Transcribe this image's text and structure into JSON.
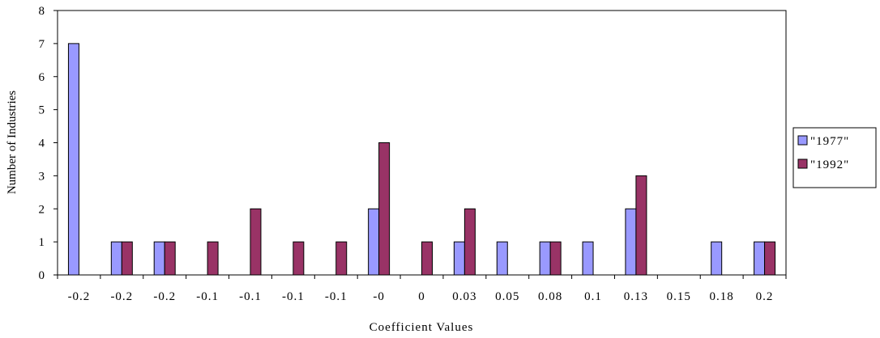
{
  "chart_data": {
    "type": "bar",
    "title": "",
    "xlabel": "Coefficient Values",
    "ylabel": "Number of Industries",
    "ylim": [
      0,
      8
    ],
    "yticks": [
      0,
      1,
      2,
      3,
      4,
      5,
      6,
      7,
      8
    ],
    "categories": [
      "-0.2",
      "-0.2",
      "-0.2",
      "-0.1",
      "-0.1",
      "-0.1",
      "-0.1",
      "-0",
      "0",
      "0.03",
      "0.05",
      "0.08",
      "0.1",
      "0.13",
      "0.15",
      "0.18",
      "0.2"
    ],
    "series": [
      {
        "name": "\"1977\"",
        "color": "#9999ff",
        "values": [
          7,
          1,
          1,
          0,
          0,
          0,
          0,
          2,
          0,
          1,
          1,
          1,
          1,
          2,
          0,
          1,
          1
        ]
      },
      {
        "name": "\"1992\"",
        "color": "#993366",
        "values": [
          0,
          1,
          1,
          1,
          2,
          1,
          1,
          4,
          1,
          2,
          0,
          1,
          0,
          3,
          0,
          0,
          1
        ]
      }
    ],
    "legend_position": "right",
    "grid": false
  }
}
